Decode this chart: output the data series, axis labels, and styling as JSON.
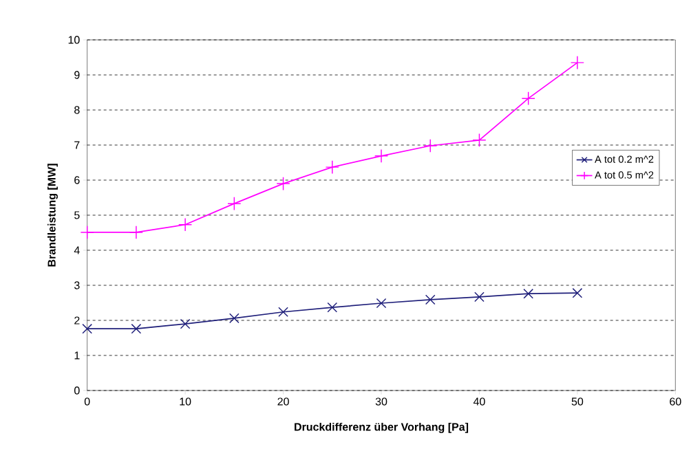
{
  "chart_data": {
    "type": "line",
    "xlabel": "Druckdifferenz  über Vorhang [Pa]",
    "ylabel": "Brandleistung  [MW]",
    "x": [
      0,
      5,
      10,
      15,
      20,
      25,
      30,
      35,
      40,
      45,
      50
    ],
    "series": [
      {
        "name": "A tot 0.2 m^2",
        "color": "#1f1f7a",
        "marker": "x",
        "values": [
          1.76,
          1.76,
          1.9,
          2.06,
          2.24,
          2.37,
          2.49,
          2.59,
          2.67,
          2.76,
          2.78
        ]
      },
      {
        "name": "A tot 0.5 m^2",
        "color": "#ff00ff",
        "marker": "cross",
        "values": [
          4.51,
          4.51,
          4.73,
          5.33,
          5.9,
          6.37,
          6.69,
          6.98,
          7.14,
          8.33,
          9.35
        ]
      }
    ],
    "xlim": [
      0,
      60
    ],
    "xticks": [
      0,
      10,
      20,
      30,
      40,
      50,
      60
    ],
    "ylim": [
      0,
      10
    ],
    "yticks": [
      0,
      1,
      2,
      3,
      4,
      5,
      6,
      7,
      8,
      9,
      10
    ],
    "grid": "y",
    "legend": "right",
    "line_style": "solid"
  }
}
